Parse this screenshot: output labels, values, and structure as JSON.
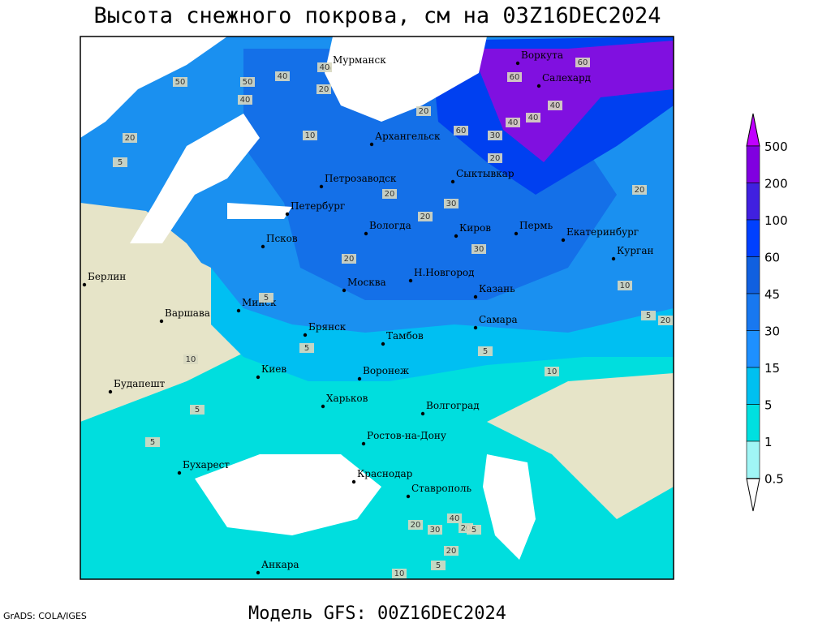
{
  "header": {
    "title": "Высота снежного покрова, см на 03Z16DEC2024"
  },
  "footer": {
    "model": "Модель GFS: 00Z16DEC2024",
    "credit": "GrADS: COLA/IGES"
  },
  "legend": {
    "levels": [
      "500",
      "200",
      "100",
      "60",
      "45",
      "30",
      "15",
      "5",
      "1",
      "0.5"
    ]
  },
  "cities": [
    "Мурманск",
    "Воркута",
    "Салехард",
    "Архангельск",
    "Петрозаводск",
    "Сыктывкар",
    "Петербург",
    "Вологда",
    "Киров",
    "Пермь",
    "Екатеринбург",
    "Курган",
    "Псков",
    "Берлин",
    "Москва",
    "Н.Новгород",
    "Казань",
    "Варшава",
    "Минск",
    "Самара",
    "Брянск",
    "Тамбов",
    "Киев",
    "Воронеж",
    "Будапешт",
    "Харьков",
    "Волгоград",
    "Ростов-на-Дону",
    "Бухарест",
    "Краснодар",
    "Ставрополь",
    "Анкара"
  ],
  "contour_labels": [
    "50",
    "40",
    "40",
    "20",
    "50",
    "40",
    "20",
    "20",
    "10",
    "5",
    "60",
    "40",
    "60",
    "60",
    "40",
    "40",
    "30",
    "20",
    "20",
    "20",
    "30",
    "20",
    "30",
    "20",
    "10",
    "5",
    "20",
    "10",
    "5",
    "5",
    "5",
    "10",
    "5",
    "5",
    "20",
    "30",
    "40",
    "20",
    "5",
    "10",
    "5",
    "20"
  ]
}
